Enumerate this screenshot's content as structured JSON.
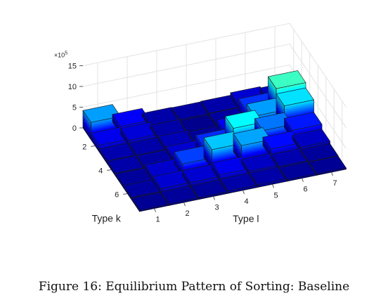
{
  "caption": "Figure 16: Equilibrium Pattern of Sorting: Baseline",
  "chart_data": {
    "type": "bar3d",
    "xlabel": "Type l",
    "ylabel": "Type k",
    "zlabel": "",
    "z_multiplier_label": "×10",
    "z_multiplier_exponent": "5",
    "x_ticks": [
      "1",
      "2",
      "3",
      "4",
      "5",
      "6",
      "7"
    ],
    "y_ticks": [
      "2",
      "4",
      "6"
    ],
    "z_ticks": [
      "0",
      "5",
      "10",
      "15"
    ],
    "zlim": [
      0,
      15
    ],
    "grid": true,
    "colormap": "jet",
    "values_1e5": [
      [
        4.2,
        1.8,
        0.6,
        0.5,
        0.6,
        1.2,
        0.9
      ],
      [
        1.6,
        1.3,
        0.6,
        0.2,
        0.5,
        2.6,
        6.5
      ],
      [
        0.7,
        0.6,
        0.8,
        0.4,
        1.8,
        4.2,
        5.2
      ],
      [
        0.6,
        0.5,
        1.2,
        2.5,
        5.6,
        3.6,
        2.2
      ],
      [
        0.4,
        1.1,
        2.8,
        4.8,
        4.3,
        2.0,
        1.0
      ],
      [
        0.5,
        1.2,
        1.2,
        1.6,
        1.0,
        0.7,
        0.4
      ],
      [
        0.3,
        0.4,
        0.4,
        0.6,
        0.6,
        0.4,
        0.3
      ]
    ]
  }
}
